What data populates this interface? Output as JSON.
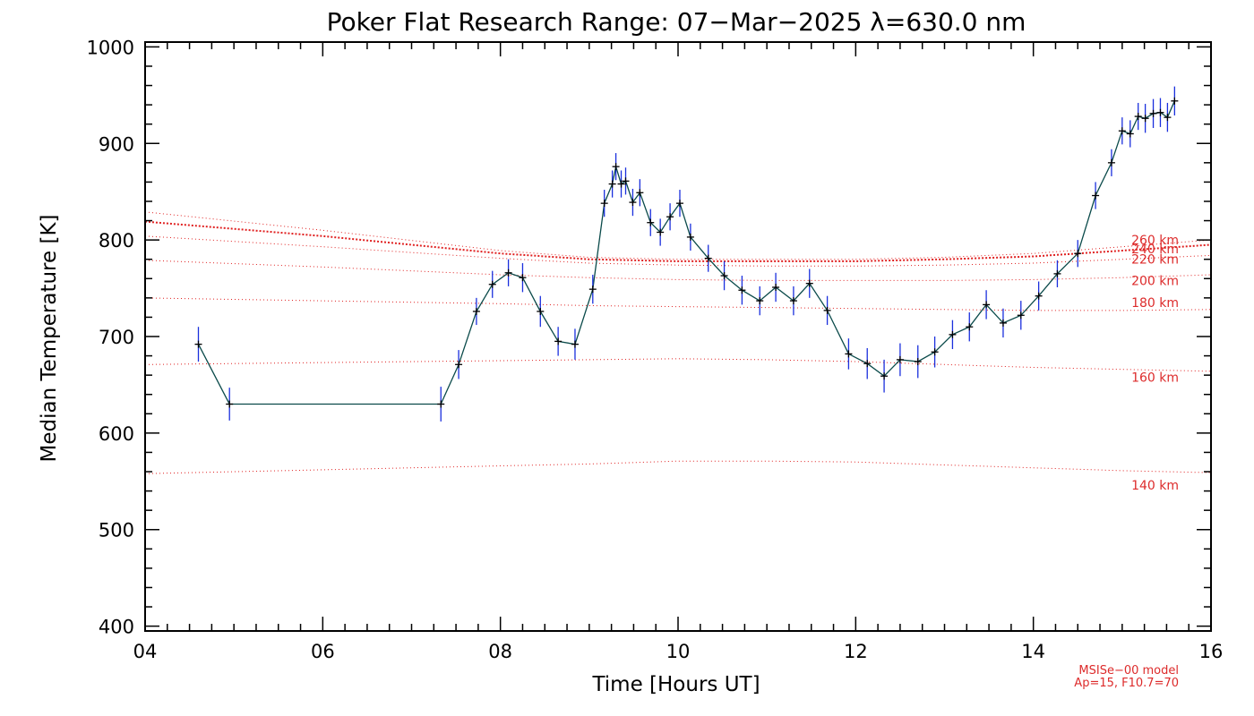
{
  "chart_data": {
    "type": "line",
    "title": "Poker Flat Research Range: 07−Mar−2025 λ=630.0 nm",
    "xlabel": "Time [Hours UT]",
    "ylabel": "Median Temperature [K]",
    "xlim": [
      4,
      16
    ],
    "ylim": [
      395,
      1005
    ],
    "xticks": [
      4,
      6,
      8,
      10,
      12,
      14,
      16
    ],
    "xtick_labels": [
      "04",
      "06",
      "08",
      "10",
      "12",
      "14",
      "16"
    ],
    "yticks": [
      400,
      500,
      600,
      700,
      800,
      900,
      1000
    ],
    "ytick_labels": [
      "400",
      "500",
      "600",
      "700",
      "800",
      "900",
      "1000"
    ],
    "grid": false,
    "colors": {
      "data_line": "#0a4a4a",
      "error_bar": "#1a2fdd",
      "marker": "#000000",
      "model": "#e02020"
    },
    "series": [
      {
        "x": [
          4.6,
          4.95,
          7.33,
          7.53,
          7.73,
          7.91,
          8.09,
          8.25,
          8.45,
          8.65,
          8.84,
          9.04,
          9.17,
          9.26,
          9.3,
          9.36,
          9.41,
          9.49,
          9.57,
          9.69,
          9.8,
          9.91,
          10.02,
          10.14,
          10.34,
          10.52,
          10.72,
          10.92,
          11.1,
          11.3,
          11.48,
          11.68,
          11.92,
          12.13,
          12.32,
          12.5,
          12.7,
          12.89,
          13.09,
          13.28,
          13.47,
          13.66,
          13.86,
          14.06,
          14.27,
          14.5,
          14.7,
          14.88,
          15.0,
          15.09,
          15.18,
          15.26,
          15.35,
          15.43,
          15.51,
          15.59
        ],
        "y": [
          692,
          630,
          630,
          671,
          726,
          754,
          766,
          761,
          726,
          695,
          692,
          749,
          838,
          858,
          876,
          858,
          861,
          839,
          849,
          818,
          808,
          824,
          838,
          803,
          781,
          763,
          748,
          737,
          751,
          737,
          755,
          727,
          682,
          672,
          659,
          676,
          674,
          684,
          702,
          710,
          733,
          714,
          722,
          742,
          765,
          786,
          846,
          880,
          913,
          910,
          928,
          926,
          931,
          932,
          927,
          944
        ],
        "err": [
          18,
          17,
          18,
          15,
          14,
          14,
          14,
          15,
          16,
          15,
          16,
          15,
          14,
          14,
          14,
          14,
          14,
          14,
          14,
          14,
          14,
          14,
          14,
          14,
          14,
          15,
          15,
          15,
          15,
          15,
          15,
          15,
          16,
          16,
          17,
          17,
          17,
          16,
          15,
          15,
          15,
          15,
          15,
          15,
          14,
          14,
          14,
          14,
          14,
          14,
          14,
          15,
          15,
          15,
          15,
          15
        ]
      }
    ],
    "model_curves": [
      {
        "label": "140 km",
        "x": [
          4,
          6,
          8,
          9,
          10,
          11,
          12,
          13,
          14,
          15,
          16
        ],
        "y": [
          558,
          562,
          566,
          568,
          571,
          571,
          570,
          567,
          564,
          561,
          559
        ]
      },
      {
        "label": "160 km",
        "x": [
          4,
          6,
          8,
          9,
          10,
          11,
          12,
          13,
          14,
          15,
          16
        ],
        "y": [
          671,
          673,
          675,
          676,
          677,
          676,
          674,
          671,
          668,
          666,
          664
        ]
      },
      {
        "label": "180 km",
        "x": [
          4,
          6,
          8,
          9,
          10,
          11,
          12,
          13,
          14,
          15,
          16
        ],
        "y": [
          740,
          737,
          734,
          732,
          731,
          730,
          729,
          728,
          727,
          727,
          728
        ]
      },
      {
        "label": "200 km",
        "x": [
          4,
          6,
          8,
          9,
          10,
          11,
          12,
          13,
          14,
          15,
          16
        ],
        "y": [
          779,
          772,
          764,
          761,
          759,
          758,
          758,
          758,
          759,
          761,
          764
        ]
      },
      {
        "label": "220 km",
        "x": [
          4,
          6,
          8,
          9,
          10,
          11,
          12,
          13,
          14,
          15,
          16
        ],
        "y": [
          804,
          793,
          781,
          776,
          774,
          773,
          773,
          774,
          776,
          780,
          784
        ]
      },
      {
        "label": "240 km",
        "x": [
          4,
          6,
          8,
          9,
          10,
          11,
          12,
          13,
          14,
          15,
          16
        ],
        "y": [
          819,
          804,
          786,
          780,
          778,
          778,
          778,
          780,
          783,
          789,
          795
        ]
      },
      {
        "label": "260 km",
        "x": [
          4,
          6,
          8,
          9,
          10,
          11,
          12,
          13,
          14,
          15,
          16
        ],
        "y": [
          829,
          810,
          789,
          782,
          780,
          780,
          780,
          782,
          786,
          793,
          800
        ]
      }
    ],
    "annotations": [
      "MSISe−00 model",
      "Ap=15, F10.7=70"
    ]
  }
}
